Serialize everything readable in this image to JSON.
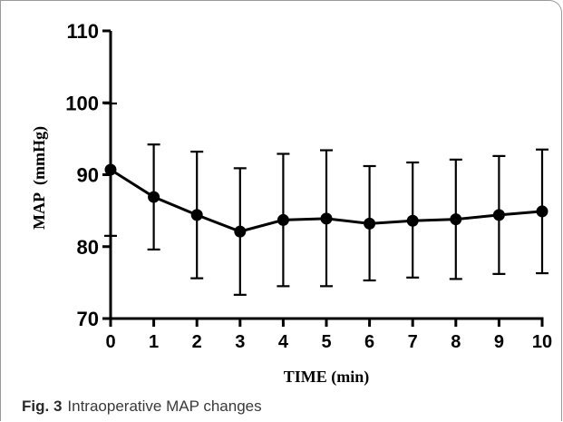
{
  "chart_data": {
    "type": "line",
    "x": [
      0,
      1,
      2,
      3,
      4,
      5,
      6,
      7,
      8,
      9,
      10
    ],
    "values": [
      90.7,
      86.9,
      84.4,
      82.1,
      83.7,
      83.9,
      83.2,
      83.6,
      83.8,
      84.4,
      84.9
    ],
    "error_upper": [
      99.9,
      94.2,
      93.2,
      90.9,
      92.9,
      93.4,
      91.2,
      91.7,
      92.1,
      92.6,
      93.5
    ],
    "error_lower": [
      81.5,
      79.6,
      75.6,
      73.3,
      74.5,
      74.5,
      75.3,
      75.7,
      75.5,
      76.2,
      76.3
    ],
    "xticks": [
      "0",
      "1",
      "2",
      "3",
      "4",
      "5",
      "6",
      "7",
      "8",
      "9",
      "10"
    ],
    "yticks": [
      "70",
      "80",
      "90",
      "100",
      "110"
    ],
    "xlim": [
      0,
      10
    ],
    "ylim": [
      70,
      110
    ],
    "xlabel": "TIME (min)",
    "ylabel": "MAP  (mmHg)",
    "grid": false,
    "color": "#000000"
  },
  "caption": {
    "label": "Fig. 3",
    "text": "Intraoperative MAP changes"
  }
}
